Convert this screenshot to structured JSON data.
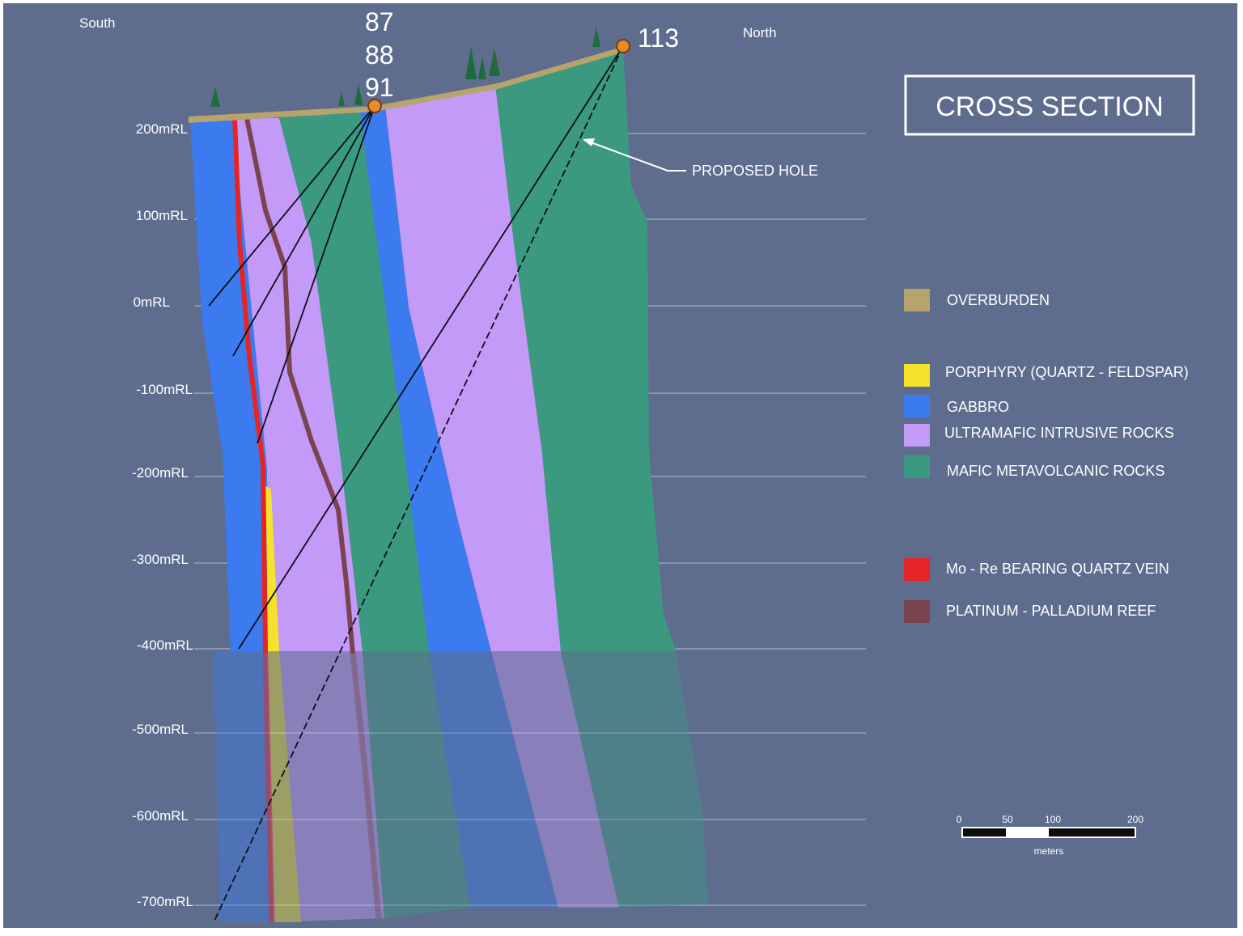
{
  "orientation": {
    "south": "South",
    "north": "North"
  },
  "title": "CROSS SECTION",
  "collar_labels": {
    "collar_a": [
      "87",
      "88",
      "91"
    ],
    "collar_b": "113"
  },
  "proposed_hole_label": "PROPOSED HOLE",
  "levels": [
    "200mRL",
    "100mRL",
    "0mRL",
    "-100mRL",
    "-200mRL",
    "-300mRL",
    "-400mRL",
    "-500mRL",
    "-600mRL",
    "-700mRL"
  ],
  "legend": [
    {
      "name": "overburden",
      "label": "OVERBURDEN",
      "color": "#b7a46c"
    },
    {
      "name": "porphyry",
      "label": "PORPHYRY (QUARTZ - FELDSPAR)",
      "color": "#f4e22c"
    },
    {
      "name": "gabbro",
      "label": "GABBRO",
      "color": "#3b7bef"
    },
    {
      "name": "ultramafic",
      "label": "ULTRAMAFIC INTRUSIVE ROCKS",
      "color": "#c49af8"
    },
    {
      "name": "mafic-metavolcanic",
      "label": "MAFIC METAVOLCANIC ROCKS",
      "color": "#3b9980"
    },
    {
      "name": "mo-re-vein",
      "label": "Mo - Re BEARING QUARTZ VEIN",
      "color": "#e52525"
    },
    {
      "name": "pt-pd-reef",
      "label": "PLATINUM - PALLADIUM REEF",
      "color": "#7a4350"
    }
  ],
  "scale_bar": {
    "ticks": [
      "0",
      "50",
      "100",
      "200"
    ],
    "unit": "meters"
  },
  "colors": {
    "background": "#5e6d8e"
  }
}
